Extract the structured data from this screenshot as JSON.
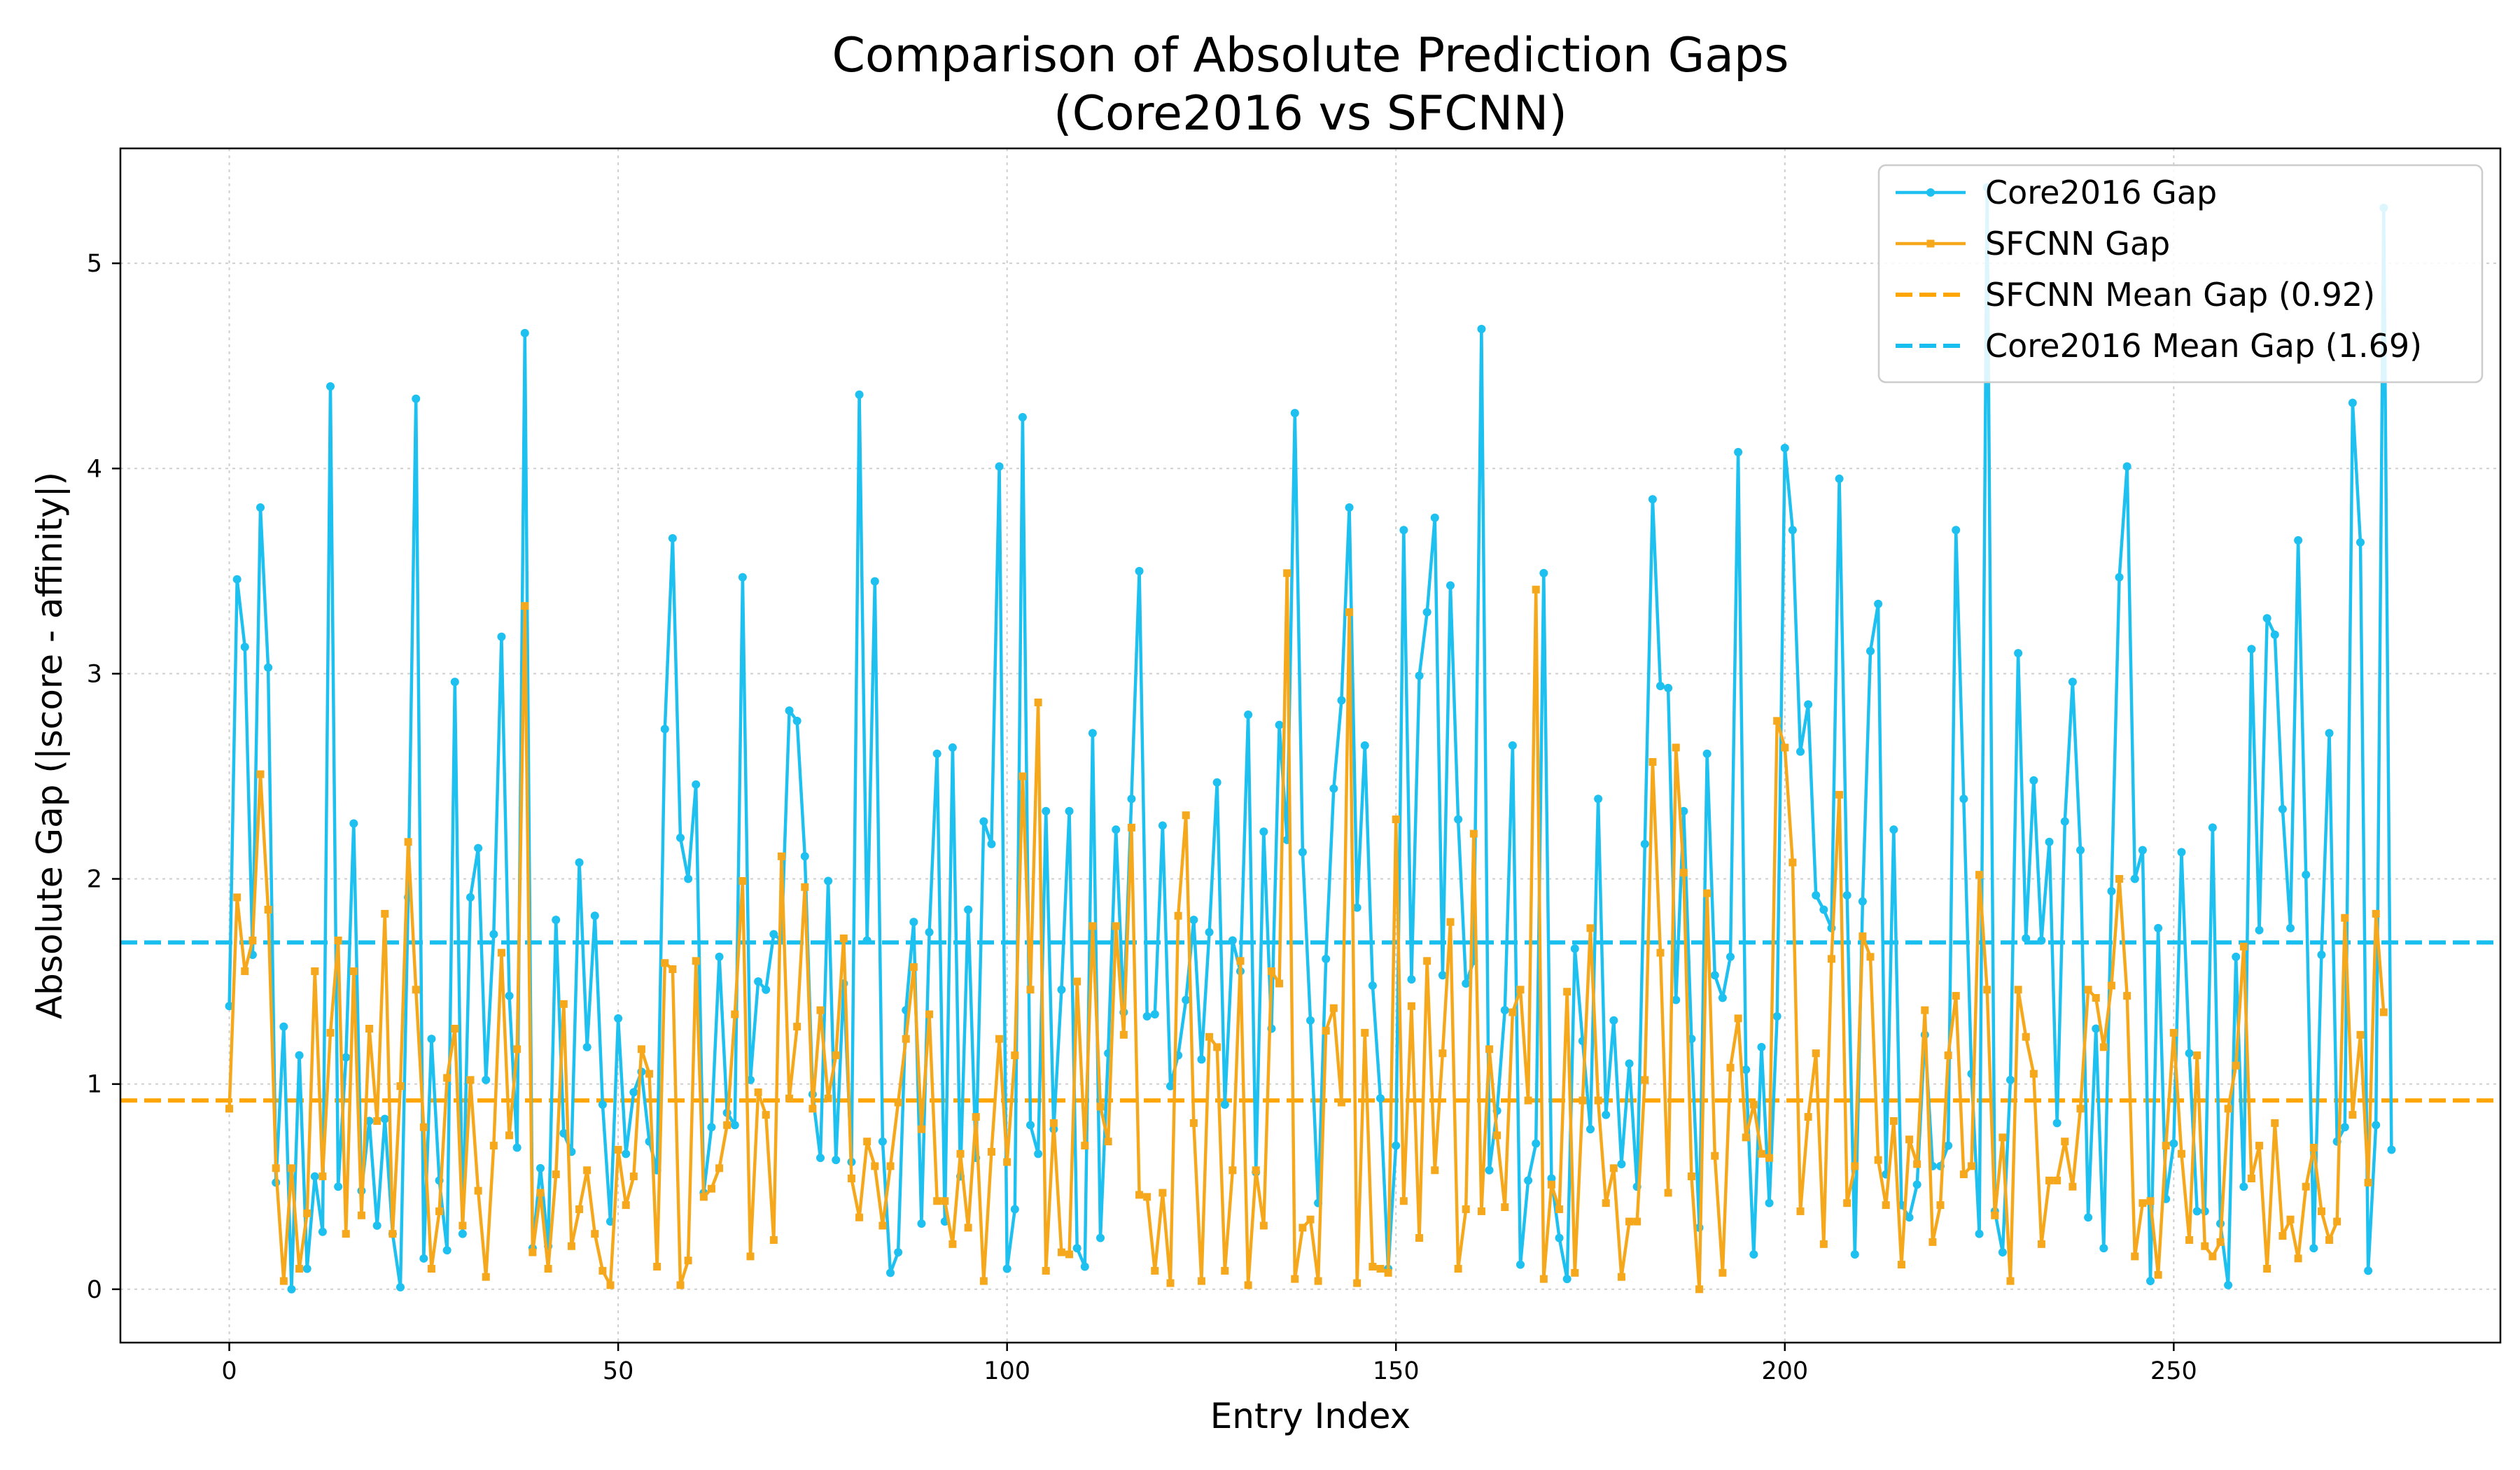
{
  "chart_data": {
    "type": "line",
    "title": [
      "Comparison of Absolute Prediction Gaps",
      "(Core2016 vs SFCNN)"
    ],
    "xlabel": "Entry Index",
    "ylabel": "Absolute Gap (|score - affinity|)",
    "xlim": [
      -14,
      292
    ],
    "ylim": [
      -0.26,
      5.56
    ],
    "xticks": [
      0,
      50,
      100,
      150,
      200,
      250
    ],
    "yticks": [
      0,
      1,
      2,
      3,
      4,
      5
    ],
    "grid": true,
    "legend_position": "top-right",
    "series": [
      {
        "name": "Core2016 Gap",
        "color": "#1ec0f0",
        "marker": "circle",
        "values": [
          1.38,
          3.46,
          3.13,
          1.63,
          3.81,
          3.03,
          0.52,
          1.28,
          0.0,
          1.14,
          0.1,
          0.55,
          0.28,
          4.4,
          0.5,
          1.13,
          2.27,
          0.48,
          0.82,
          0.31,
          0.83,
          0.27,
          0.01,
          1.91,
          4.34,
          0.15,
          1.22,
          0.53,
          0.19,
          2.96,
          0.27,
          1.91,
          2.15,
          1.02,
          1.73,
          3.18,
          1.43,
          0.69,
          4.66,
          0.2,
          0.59,
          0.21,
          1.8,
          0.76,
          0.67,
          2.08,
          1.18,
          1.82,
          0.9,
          0.33,
          1.32,
          0.66,
          0.96,
          1.06,
          0.72,
          0.58,
          2.73,
          3.66,
          2.2,
          2.0,
          2.46,
          0.47,
          0.79,
          1.62,
          0.86,
          0.8,
          3.47,
          1.02,
          1.5,
          1.46,
          1.73,
          1.7,
          2.82,
          2.77,
          2.11,
          0.95,
          0.64,
          1.99,
          0.63,
          1.49,
          0.62,
          4.36,
          1.7,
          3.45,
          0.72,
          0.08,
          0.18,
          1.36,
          1.79,
          0.32,
          1.74,
          2.61,
          0.33,
          2.64,
          0.55,
          1.85,
          0.64,
          2.28,
          2.17,
          4.01,
          0.1,
          0.39,
          4.25,
          0.8,
          0.66,
          2.33,
          0.78,
          1.46,
          2.33,
          0.2,
          0.11,
          2.71,
          0.25,
          1.15,
          2.24,
          1.35,
          2.39,
          3.5,
          1.33,
          1.34,
          2.26,
          0.99,
          1.14,
          1.41,
          1.8,
          1.12,
          1.74,
          2.47,
          0.9,
          1.7,
          1.55,
          2.8,
          0.57,
          2.23,
          1.27,
          2.75,
          2.19,
          4.27,
          2.13,
          1.31,
          0.42,
          1.61,
          2.44,
          2.87,
          3.81,
          1.86,
          2.65,
          1.48,
          0.93,
          0.1,
          0.7,
          3.7,
          1.51,
          2.99,
          3.3,
          3.76,
          1.53,
          3.43,
          2.29,
          1.49,
          1.6,
          4.68,
          0.58,
          0.87,
          1.36,
          2.65,
          0.12,
          0.53,
          0.71,
          3.49,
          0.54,
          0.25,
          0.05,
          1.66,
          1.21,
          0.78,
          2.39,
          0.85,
          1.31,
          0.61,
          1.1,
          0.5,
          2.17,
          3.85,
          2.94,
          2.93,
          1.41,
          2.33,
          1.22,
          0.3,
          2.61,
          1.53,
          1.42,
          1.62,
          4.08,
          1.07,
          0.17,
          1.18,
          0.42,
          1.33,
          4.1,
          3.7,
          2.62,
          2.85,
          1.92,
          1.85,
          1.76,
          3.95,
          1.92,
          0.17,
          1.89,
          3.11,
          3.34,
          0.56,
          2.24,
          0.41,
          0.35,
          0.51,
          1.24,
          0.6,
          0.6,
          0.7,
          3.7,
          2.39,
          1.05,
          0.27,
          5.37,
          0.38,
          0.18,
          1.02,
          3.1,
          1.71,
          2.48,
          1.7,
          2.18,
          0.81,
          2.28,
          2.96,
          2.14,
          0.35,
          1.27,
          0.2,
          1.94,
          3.47,
          4.01,
          2.0,
          2.14,
          0.04,
          1.76,
          0.44,
          0.71,
          2.13,
          1.15,
          0.38,
          0.38,
          2.25,
          0.32,
          0.02,
          1.62,
          0.5,
          3.12,
          1.75,
          3.27,
          3.19,
          2.34,
          1.76,
          3.65,
          2.02,
          0.2,
          1.63,
          2.71,
          0.72,
          0.79,
          4.32,
          3.64,
          0.09,
          0.8,
          5.27,
          0.68
        ]
      },
      {
        "name": "SFCNN Gap",
        "color": "#f5a81c",
        "marker": "square",
        "values": [
          0.88,
          1.91,
          1.55,
          1.7,
          2.51,
          1.85,
          0.59,
          0.04,
          0.59,
          0.1,
          0.37,
          1.55,
          0.55,
          1.25,
          1.7,
          0.27,
          1.55,
          0.36,
          1.27,
          0.82,
          1.83,
          0.27,
          0.99,
          2.18,
          1.46,
          0.79,
          0.1,
          0.38,
          1.03,
          1.27,
          0.31,
          1.02,
          0.48,
          0.06,
          0.7,
          1.64,
          0.75,
          1.17,
          3.33,
          0.18,
          0.47,
          0.1,
          0.56,
          1.39,
          0.21,
          0.39,
          0.58,
          0.27,
          0.09,
          0.02,
          0.68,
          0.41,
          0.55,
          1.17,
          1.05,
          0.11,
          1.59,
          1.56,
          0.02,
          0.14,
          1.6,
          0.45,
          0.49,
          0.59,
          0.8,
          1.34,
          1.99,
          0.16,
          0.96,
          0.85,
          0.24,
          2.11,
          0.93,
          1.28,
          1.96,
          0.88,
          1.36,
          0.93,
          1.14,
          1.71,
          0.54,
          0.35,
          0.72,
          0.6,
          0.31,
          0.6,
          0.91,
          1.22,
          1.57,
          0.78,
          1.34,
          0.43,
          0.43,
          0.22,
          0.66,
          0.3,
          0.84,
          0.04,
          0.67,
          1.22,
          0.62,
          1.14,
          2.5,
          1.46,
          2.86,
          0.09,
          0.81,
          0.18,
          0.17,
          1.5,
          0.7,
          1.77,
          0.89,
          0.72,
          1.77,
          1.24,
          2.25,
          0.46,
          0.45,
          0.09,
          0.47,
          0.03,
          1.82,
          2.31,
          0.81,
          0.04,
          1.23,
          1.18,
          0.09,
          0.58,
          1.6,
          0.02,
          0.58,
          0.31,
          1.55,
          1.49,
          3.49,
          0.05,
          0.3,
          0.34,
          0.04,
          1.26,
          1.37,
          0.91,
          3.3,
          0.03,
          1.25,
          0.11,
          0.1,
          0.08,
          2.29,
          0.43,
          1.38,
          0.25,
          1.6,
          0.58,
          1.15,
          1.79,
          0.1,
          0.39,
          2.22,
          0.38,
          1.17,
          0.75,
          0.4,
          1.35,
          1.46,
          0.92,
          3.41,
          0.05,
          0.51,
          0.39,
          1.45,
          0.08,
          0.92,
          1.76,
          0.92,
          0.42,
          0.59,
          0.06,
          0.33,
          0.33,
          1.02,
          2.57,
          1.64,
          0.47,
          2.64,
          2.03,
          0.55,
          0.0,
          1.93,
          0.65,
          0.08,
          1.08,
          1.32,
          0.74,
          0.9,
          0.66,
          0.64,
          2.77,
          2.64,
          2.08,
          0.38,
          0.84,
          1.15,
          0.22,
          1.61,
          2.41,
          0.42,
          0.6,
          1.72,
          1.62,
          0.63,
          0.41,
          0.82,
          0.12,
          0.73,
          0.61,
          1.36,
          0.23,
          0.41,
          1.14,
          1.43,
          0.56,
          0.6,
          2.02,
          1.46,
          0.36,
          0.74,
          0.04,
          1.46,
          1.23,
          1.05,
          0.22,
          0.53,
          0.53,
          0.72,
          0.5,
          0.88,
          1.46,
          1.42,
          1.18,
          1.48,
          2.0,
          1.43,
          0.16,
          0.42,
          0.43,
          0.07,
          0.7,
          1.25,
          0.66,
          0.24,
          1.14,
          0.21,
          0.16,
          0.23,
          0.88,
          1.09,
          1.67,
          0.54,
          0.7,
          0.1,
          0.81,
          0.26,
          0.34,
          0.15,
          0.5,
          0.69,
          0.38,
          0.24,
          0.33,
          1.81,
          0.85,
          1.24,
          0.52,
          1.83,
          1.35
        ]
      },
      {
        "name": "SFCNN Mean Gap (0.92)",
        "color": "#ffa500",
        "style": "dashed",
        "value": 0.92
      },
      {
        "name": "Core2016 Mean Gap (1.69)",
        "color": "#18bfee",
        "style": "dashed",
        "value": 1.69
      }
    ]
  }
}
